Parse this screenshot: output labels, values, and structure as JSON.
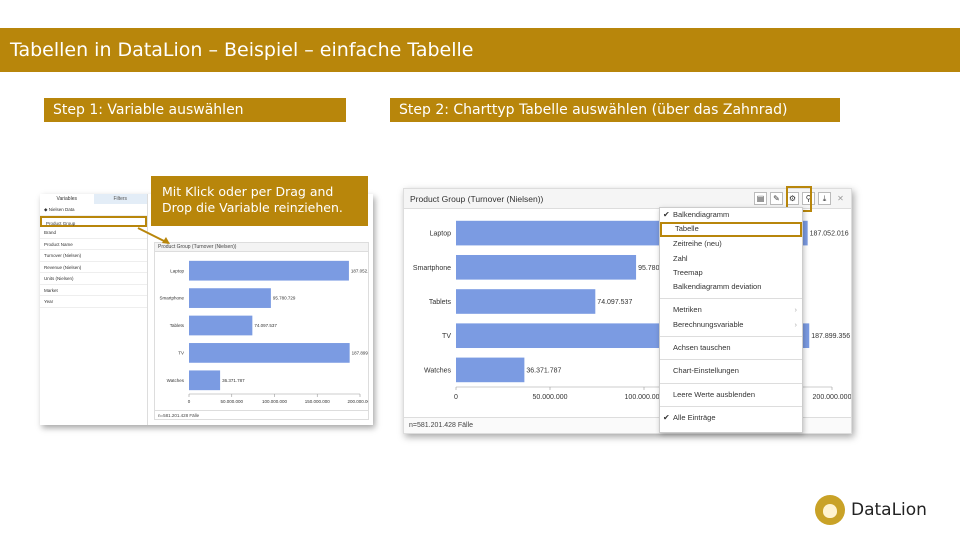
{
  "slide": {
    "title": "Tabellen in DataLion – Beispiel – einfache Tabelle",
    "step1": "Step 1: Variable auswählen",
    "step2": "Step 2: Charttyp Tabelle auswählen (über das Zahnrad)",
    "callout": "Mit Klick oder per Drag and Drop die Variable reinziehen.",
    "logo_text": "DataLion"
  },
  "colors": {
    "accent": "#b8860b",
    "bar": "#7b9be2"
  },
  "variables_panel": {
    "tabs": [
      "Variables",
      "Filters"
    ],
    "items": [
      "◆ Nielsen Data",
      "Product Group",
      "Brand",
      "Product Name",
      "Turnover (Nielsen)",
      "Revenue (Nielsen)",
      "Units (Nielsen)",
      "Market",
      "Year"
    ],
    "selected": "Product Group"
  },
  "chart_panel": {
    "title": "Product Group (Turnover (Nielsen))",
    "footer": "n=581.201.428 Fälle",
    "tools": [
      "table-icon",
      "pencil-icon",
      "gear-icon",
      "zoom-icon",
      "download-icon",
      "close-icon"
    ]
  },
  "chart_data": {
    "type": "bar",
    "orientation": "horizontal",
    "title": "Product Group (Turnover (Nielsen))",
    "categories": [
      "Laptop",
      "Smartphone",
      "Tablets",
      "TV",
      "Watches"
    ],
    "values": [
      187052016,
      95780729,
      74097537,
      187899356,
      36371787
    ],
    "value_labels": [
      "187.052.016",
      "95.780.729",
      "74.097.537",
      "187.899.356",
      "36.371.787"
    ],
    "xlim": [
      0,
      200000000
    ],
    "xticks": [
      "0",
      "50.000.000",
      "100.000.000",
      "150.000.000",
      "200.000.000"
    ]
  },
  "menu": {
    "items": [
      {
        "label": "Balkendiagramm",
        "checked": true
      },
      {
        "label": "Tabelle",
        "highlighted": true
      },
      {
        "label": "Zeitreihe (neu)"
      },
      {
        "label": "Zahl"
      },
      {
        "label": "Treemap"
      },
      {
        "label": "Balkendiagramm deviation"
      },
      {
        "label": "Metriken",
        "submenu": true
      },
      {
        "label": "Berechnungsvariable",
        "submenu": true
      },
      {
        "label": "Achsen tauschen"
      },
      {
        "label": "Chart-Einstellungen"
      },
      {
        "label": "Leere Werte ausblenden"
      },
      {
        "label": "Alle Einträge",
        "checked": true
      }
    ]
  }
}
